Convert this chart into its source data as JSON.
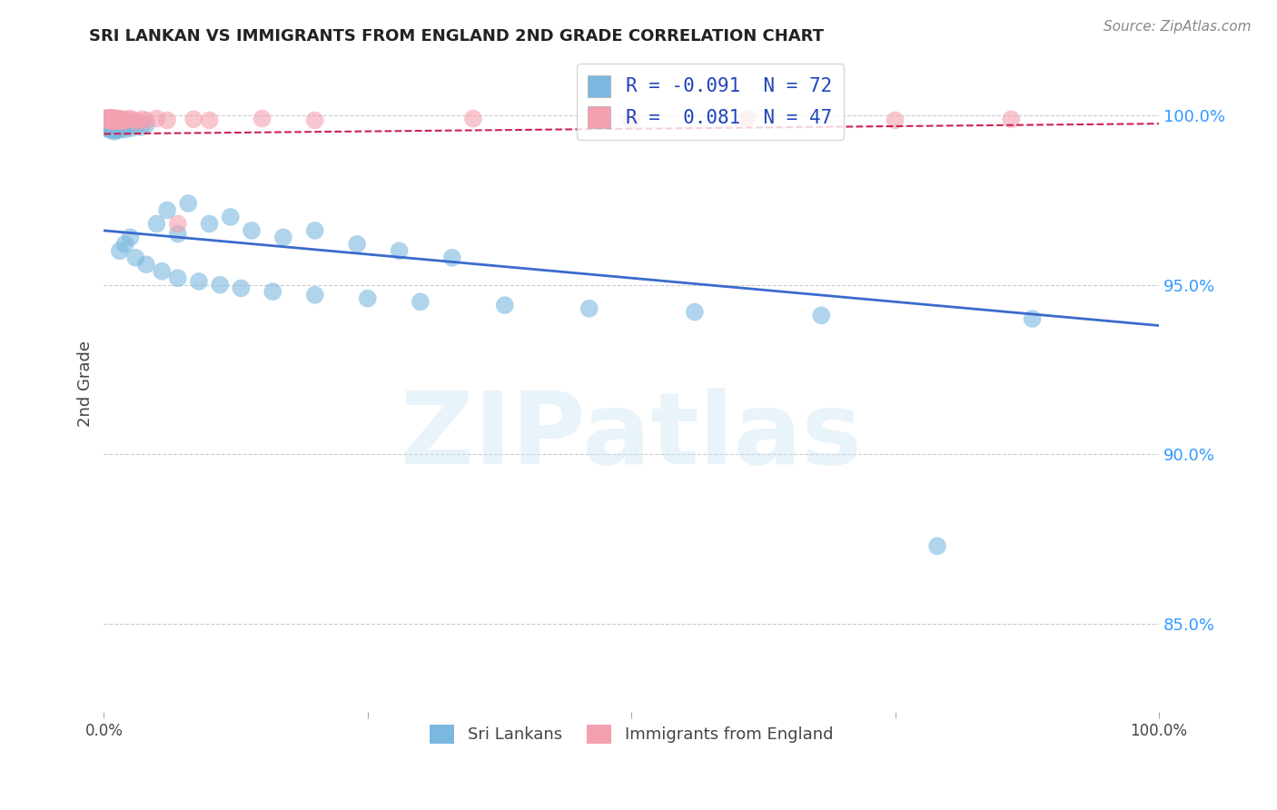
{
  "title": "SRI LANKAN VS IMMIGRANTS FROM ENGLAND 2ND GRADE CORRELATION CHART",
  "source": "Source: ZipAtlas.com",
  "ylabel": "2nd Grade",
  "watermark": "ZIPatlas",
  "legend_line1": "R = -0.091  N = 72",
  "legend_line2": "R =  0.081  N = 47",
  "series1_name": "Sri Lankans",
  "series2_name": "Immigrants from England",
  "series1_color": "#7ab8e0",
  "series2_color": "#f4a0b0",
  "line1_color": "#3a6bcc",
  "line2_color": "#cc2255",
  "line2_style": "dashed",
  "ytick_labels": [
    "100.0%",
    "95.0%",
    "90.0%",
    "85.0%"
  ],
  "ytick_values": [
    1.0,
    0.95,
    0.9,
    0.85
  ],
  "xlim": [
    0.0,
    1.0
  ],
  "ylim": [
    0.824,
    1.018
  ],
  "background_color": "#ffffff",
  "blue_trend_y0": 0.966,
  "blue_trend_y1": 0.938,
  "pink_trend_y0": 0.9945,
  "pink_trend_y1": 0.9975,
  "sri_lankans_x": [
    0.002,
    0.003,
    0.003,
    0.004,
    0.004,
    0.005,
    0.005,
    0.005,
    0.006,
    0.006,
    0.006,
    0.007,
    0.007,
    0.007,
    0.008,
    0.008,
    0.009,
    0.009,
    0.01,
    0.01,
    0.01,
    0.011,
    0.011,
    0.012,
    0.012,
    0.013,
    0.013,
    0.014,
    0.015,
    0.016,
    0.017,
    0.018,
    0.019,
    0.02,
    0.022,
    0.024,
    0.026,
    0.03,
    0.035,
    0.04,
    0.05,
    0.06,
    0.07,
    0.08,
    0.1,
    0.12,
    0.14,
    0.17,
    0.2,
    0.24,
    0.28,
    0.33,
    0.015,
    0.02,
    0.025,
    0.03,
    0.04,
    0.055,
    0.07,
    0.09,
    0.11,
    0.13,
    0.16,
    0.2,
    0.25,
    0.3,
    0.38,
    0.46,
    0.56,
    0.68,
    0.79,
    0.88
  ],
  "sri_lankans_y": [
    0.998,
    0.997,
    0.996,
    0.9985,
    0.9975,
    0.999,
    0.998,
    0.996,
    0.9985,
    0.9975,
    0.996,
    0.998,
    0.997,
    0.9955,
    0.9975,
    0.996,
    0.9985,
    0.9965,
    0.998,
    0.9968,
    0.9952,
    0.9972,
    0.9958,
    0.9975,
    0.9962,
    0.997,
    0.9955,
    0.9968,
    0.9965,
    0.9972,
    0.996,
    0.9968,
    0.9972,
    0.9958,
    0.9968,
    0.9975,
    0.9962,
    0.997,
    0.9965,
    0.9972,
    0.968,
    0.972,
    0.965,
    0.974,
    0.968,
    0.97,
    0.966,
    0.964,
    0.966,
    0.962,
    0.96,
    0.958,
    0.96,
    0.962,
    0.964,
    0.958,
    0.956,
    0.954,
    0.952,
    0.951,
    0.95,
    0.949,
    0.948,
    0.947,
    0.946,
    0.945,
    0.944,
    0.943,
    0.942,
    0.941,
    0.873,
    0.94
  ],
  "england_x": [
    0.002,
    0.003,
    0.003,
    0.004,
    0.004,
    0.005,
    0.005,
    0.006,
    0.006,
    0.007,
    0.007,
    0.007,
    0.008,
    0.008,
    0.009,
    0.009,
    0.01,
    0.01,
    0.011,
    0.011,
    0.012,
    0.012,
    0.013,
    0.014,
    0.015,
    0.016,
    0.017,
    0.018,
    0.02,
    0.022,
    0.025,
    0.028,
    0.032,
    0.036,
    0.04,
    0.05,
    0.06,
    0.07,
    0.085,
    0.1,
    0.15,
    0.2,
    0.35,
    0.5,
    0.61,
    0.75,
    0.86
  ],
  "england_y": [
    0.999,
    0.9992,
    0.9988,
    0.999,
    0.9985,
    0.9992,
    0.9988,
    0.999,
    0.9985,
    0.9992,
    0.9988,
    0.9982,
    0.999,
    0.9985,
    0.9992,
    0.9986,
    0.999,
    0.9984,
    0.9988,
    0.9982,
    0.999,
    0.9985,
    0.9988,
    0.9985,
    0.999,
    0.9985,
    0.9988,
    0.9982,
    0.9985,
    0.9988,
    0.999,
    0.9985,
    0.9982,
    0.9988,
    0.9985,
    0.999,
    0.9985,
    0.968,
    0.9988,
    0.9985,
    0.999,
    0.9985,
    0.999,
    0.9985,
    0.999,
    0.9985,
    0.9988
  ]
}
